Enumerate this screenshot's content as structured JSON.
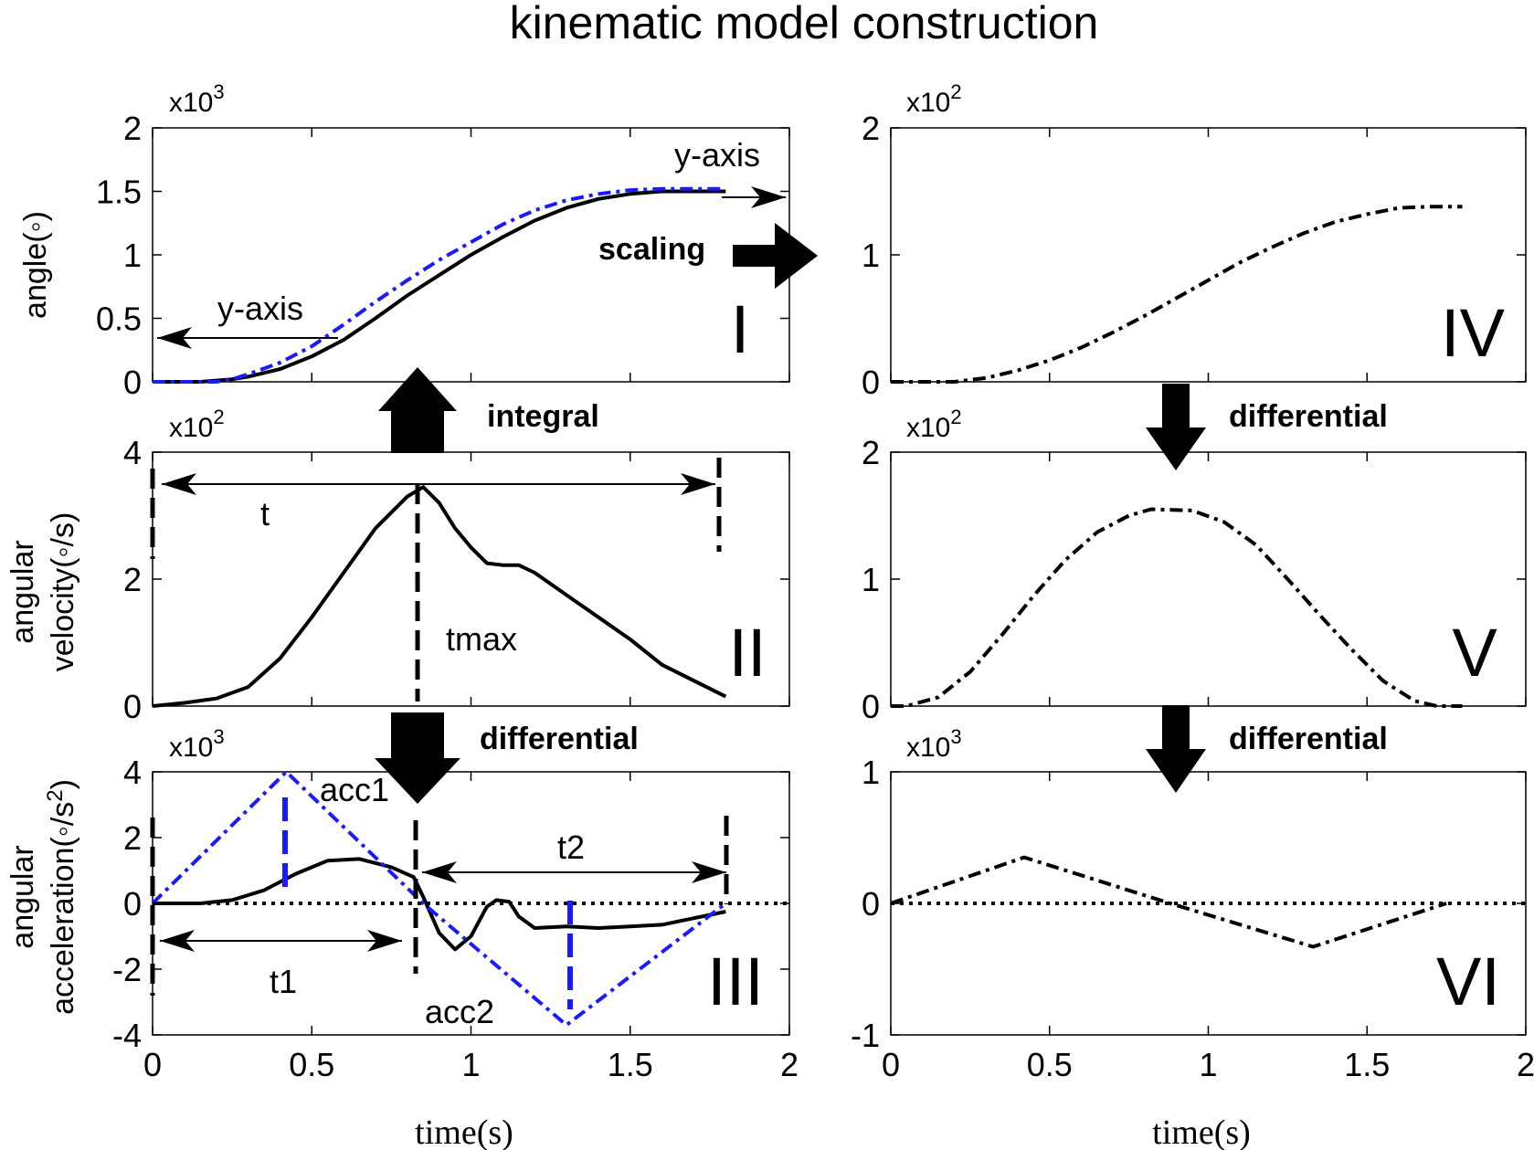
{
  "title": "kinematic model construction",
  "colors": {
    "blue": "#1a1aff",
    "black": "#000000"
  },
  "chart_data": [
    {
      "id": "I",
      "type": "line",
      "panel_label": "I",
      "ylabel": "angle(◦)",
      "multiplier": "x10",
      "multiplier_exp": "3",
      "ylim": [
        0,
        2
      ],
      "yticks": [
        "0",
        "0.5",
        "1",
        "1.5",
        "2"
      ],
      "ytick_values": [
        0,
        0.5,
        1,
        1.5,
        2
      ],
      "xlim": [
        0,
        2
      ],
      "xlabel": "",
      "xticks": [],
      "series": [
        {
          "name": "measured angle",
          "style": "solid",
          "color": "black",
          "x": [
            0,
            0.15,
            0.25,
            0.3,
            0.4,
            0.5,
            0.6,
            0.7,
            0.8,
            0.9,
            1.0,
            1.1,
            1.2,
            1.3,
            1.4,
            1.5,
            1.6,
            1.7,
            1.8
          ],
          "y": [
            0,
            0,
            0.02,
            0.04,
            0.1,
            0.2,
            0.33,
            0.5,
            0.68,
            0.84,
            1.0,
            1.14,
            1.27,
            1.37,
            1.44,
            1.48,
            1.5,
            1.5,
            1.5
          ]
        },
        {
          "name": "model angle",
          "style": "dashdot",
          "color": "blue",
          "x": [
            0,
            0.2,
            0.25,
            0.3,
            0.4,
            0.5,
            0.6,
            0.7,
            0.8,
            0.9,
            1.0,
            1.1,
            1.2,
            1.3,
            1.4,
            1.5,
            1.6,
            1.7,
            1.8
          ],
          "y": [
            0,
            0,
            0.02,
            0.06,
            0.15,
            0.28,
            0.45,
            0.63,
            0.8,
            0.96,
            1.1,
            1.24,
            1.35,
            1.43,
            1.48,
            1.51,
            1.52,
            1.52,
            1.52
          ]
        }
      ],
      "annotations": {
        "y_axis_right": "y-axis",
        "y_axis_left": "y-axis"
      }
    },
    {
      "id": "II",
      "type": "line",
      "panel_label": "II",
      "ylabel_line1": "angular",
      "ylabel_line2": "velocity(◦/s)",
      "multiplier": "x10",
      "multiplier_exp": "2",
      "ylim": [
        0,
        4
      ],
      "yticks": [
        "0",
        "2",
        "4"
      ],
      "ytick_values": [
        0,
        2,
        4
      ],
      "xlim": [
        0,
        2
      ],
      "xlabel": "",
      "xticks": [],
      "series": [
        {
          "name": "angular velocity",
          "style": "solid",
          "color": "black",
          "x": [
            0,
            0.1,
            0.2,
            0.3,
            0.4,
            0.5,
            0.6,
            0.7,
            0.8,
            0.85,
            0.9,
            0.95,
            1.0,
            1.05,
            1.1,
            1.15,
            1.2,
            1.3,
            1.4,
            1.5,
            1.6,
            1.7,
            1.8
          ],
          "y": [
            0,
            0.05,
            0.12,
            0.3,
            0.75,
            1.4,
            2.1,
            2.8,
            3.3,
            3.45,
            3.2,
            2.8,
            2.5,
            2.25,
            2.22,
            2.22,
            2.1,
            1.75,
            1.4,
            1.05,
            0.65,
            0.4,
            0.15
          ]
        }
      ],
      "annotations": {
        "t": "t",
        "tmax": "tmax"
      }
    },
    {
      "id": "III",
      "type": "line",
      "panel_label": "III",
      "ylabel_line1": "angular",
      "ylabel_line2": "acceleration(◦/s",
      "ylabel_exp": "2",
      "ylabel_close": ")",
      "multiplier": "x10",
      "multiplier_exp": "3",
      "ylim": [
        -4,
        4
      ],
      "yticks": [
        "-4",
        "-2",
        "0",
        "2",
        "4"
      ],
      "ytick_values": [
        -4,
        -2,
        0,
        2,
        4
      ],
      "xlim": [
        0,
        2
      ],
      "xlabel": "time(s)",
      "xticks": [
        "0",
        "0.5",
        "1",
        "1.5",
        "2"
      ],
      "xtick_values": [
        0,
        0.5,
        1,
        1.5,
        2
      ],
      "series": [
        {
          "name": "angular acceleration",
          "style": "solid",
          "color": "black",
          "x": [
            0,
            0.15,
            0.25,
            0.35,
            0.45,
            0.55,
            0.65,
            0.75,
            0.82,
            0.85,
            0.9,
            0.95,
            1.0,
            1.05,
            1.08,
            1.12,
            1.15,
            1.2,
            1.3,
            1.4,
            1.5,
            1.6,
            1.7,
            1.8
          ],
          "y": [
            0,
            0,
            0.1,
            0.4,
            0.9,
            1.3,
            1.35,
            1.1,
            0.8,
            0.2,
            -0.9,
            -1.4,
            -1.0,
            -0.1,
            0.1,
            0.05,
            -0.4,
            -0.75,
            -0.7,
            -0.75,
            -0.7,
            -0.65,
            -0.45,
            -0.25
          ]
        },
        {
          "name": "model acceleration",
          "style": "dashdot",
          "color": "blue",
          "x": [
            0,
            0.42,
            0.85,
            1.3,
            1.8
          ],
          "y": [
            0,
            4,
            0,
            -3.7,
            0
          ]
        },
        {
          "name": "zero line",
          "style": "dotted",
          "color": "black",
          "x": [
            0,
            2
          ],
          "y": [
            0,
            0
          ]
        }
      ],
      "annotations": {
        "acc1": "acc1",
        "acc2": "acc2",
        "t1": "t1",
        "t2": "t2"
      }
    },
    {
      "id": "IV",
      "type": "line",
      "panel_label": "IV",
      "multiplier": "x10",
      "multiplier_exp": "2",
      "ylim": [
        0,
        2
      ],
      "yticks": [
        "0",
        "1",
        "2"
      ],
      "ytick_values": [
        0,
        1,
        2
      ],
      "xlim": [
        0,
        2
      ],
      "xlabel": "",
      "xticks": [],
      "series": [
        {
          "name": "scaled angle",
          "style": "dashdot",
          "color": "black",
          "x": [
            0,
            0.2,
            0.3,
            0.4,
            0.5,
            0.6,
            0.7,
            0.8,
            0.9,
            1.0,
            1.1,
            1.2,
            1.3,
            1.4,
            1.5,
            1.6,
            1.7,
            1.8
          ],
          "y": [
            0,
            0,
            0.03,
            0.09,
            0.17,
            0.27,
            0.39,
            0.52,
            0.66,
            0.8,
            0.94,
            1.06,
            1.17,
            1.26,
            1.32,
            1.37,
            1.38,
            1.38
          ]
        }
      ]
    },
    {
      "id": "V",
      "type": "line",
      "panel_label": "V",
      "multiplier": "x10",
      "multiplier_exp": "2",
      "ylim": [
        0,
        2
      ],
      "yticks": [
        "0",
        "1",
        "2"
      ],
      "ytick_values": [
        0,
        1,
        2
      ],
      "xlim": [
        0,
        2
      ],
      "xlabel": "",
      "xticks": [],
      "series": [
        {
          "name": "model velocity",
          "style": "dashdot",
          "color": "black",
          "x": [
            0,
            0.05,
            0.15,
            0.25,
            0.35,
            0.45,
            0.55,
            0.65,
            0.75,
            0.82,
            0.95,
            1.05,
            1.15,
            1.25,
            1.35,
            1.45,
            1.55,
            1.65,
            1.72,
            1.8
          ],
          "y": [
            0,
            0,
            0.07,
            0.27,
            0.56,
            0.87,
            1.15,
            1.37,
            1.5,
            1.55,
            1.54,
            1.45,
            1.27,
            1.0,
            0.72,
            0.45,
            0.2,
            0.04,
            0,
            0
          ]
        }
      ]
    },
    {
      "id": "VI",
      "type": "line",
      "panel_label": "VI",
      "multiplier": "x10",
      "multiplier_exp": "3",
      "ylim": [
        -1,
        1
      ],
      "yticks": [
        "-1",
        "0",
        "1"
      ],
      "ytick_values": [
        -1,
        0,
        1
      ],
      "xlim": [
        0,
        2
      ],
      "xlabel": "time(s)",
      "xticks": [
        "0",
        "0.5",
        "1",
        "1.5",
        "2"
      ],
      "xtick_values": [
        0,
        0.5,
        1,
        1.5,
        2
      ],
      "series": [
        {
          "name": "model acceleration",
          "style": "dashdot",
          "color": "black",
          "x": [
            0,
            0.42,
            0.88,
            1.33,
            1.75
          ],
          "y": [
            0,
            0.35,
            0,
            -0.33,
            0
          ]
        },
        {
          "name": "zero line",
          "style": "dotted",
          "color": "black",
          "x": [
            0,
            2
          ],
          "y": [
            0,
            0
          ]
        }
      ]
    }
  ],
  "arrows": {
    "scaling": "scaling",
    "integral": "integral",
    "differential": "differential"
  }
}
